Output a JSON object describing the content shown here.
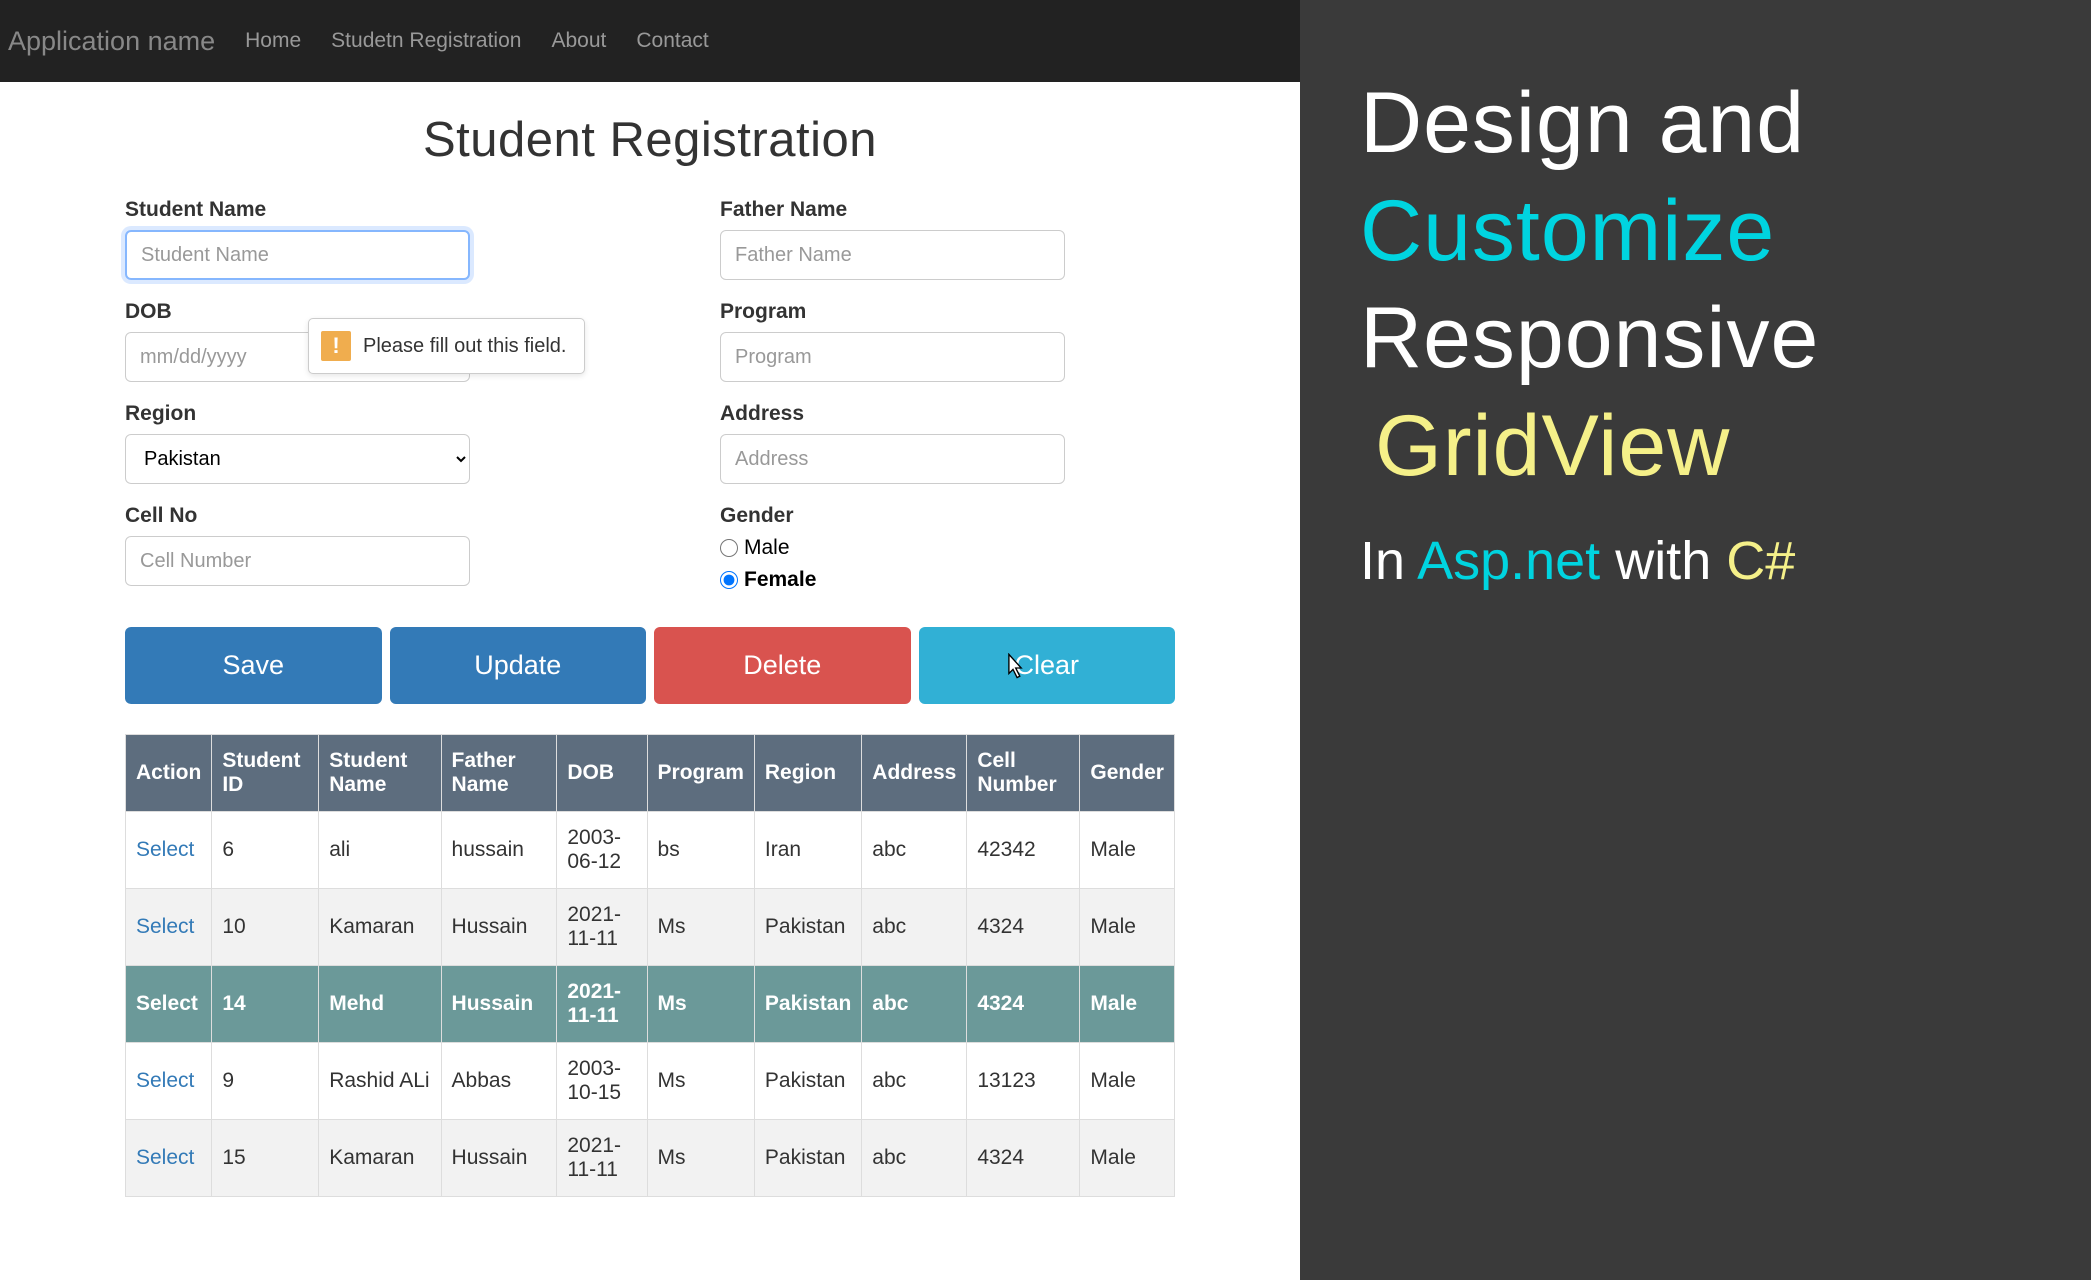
{
  "navbar": {
    "brand": "Application name",
    "links": [
      "Home",
      "Studetn Registration",
      "About",
      "Contact"
    ]
  },
  "page": {
    "title": "Student Registration"
  },
  "form": {
    "student_name": {
      "label": "Student Name",
      "placeholder": "Student Name",
      "value": ""
    },
    "father_name": {
      "label": "Father Name",
      "placeholder": "Father Name",
      "value": ""
    },
    "dob": {
      "label": "DOB",
      "placeholder": "mm/dd/yyyy",
      "value": ""
    },
    "program": {
      "label": "Program",
      "placeholder": "Program",
      "value": ""
    },
    "region": {
      "label": "Region",
      "selected": "Pakistan"
    },
    "address": {
      "label": "Address",
      "placeholder": "Address",
      "value": ""
    },
    "cell_no": {
      "label": "Cell No",
      "placeholder": "Cell Number",
      "value": ""
    },
    "gender": {
      "label": "Gender",
      "male": "Male",
      "female": "Female",
      "selected": "Female"
    },
    "tooltip": "Please fill out this field."
  },
  "buttons": {
    "save": "Save",
    "update": "Update",
    "delete": "Delete",
    "clear": "Clear"
  },
  "grid": {
    "headers": [
      "Action",
      "Student ID",
      "Student Name",
      "Father Name",
      "DOB",
      "Program",
      "Region",
      "Address",
      "Cell Number",
      "Gender"
    ],
    "select_label": "Select",
    "rows": [
      {
        "id": "6",
        "name": "ali",
        "father": "hussain",
        "dob": "2003-06-12",
        "program": "bs",
        "region": "Iran",
        "address": "abc",
        "cell": "42342",
        "gender": "Male",
        "selected": false,
        "striped": false
      },
      {
        "id": "10",
        "name": "Kamaran",
        "father": "Hussain",
        "dob": "2021-11-11",
        "program": "Ms",
        "region": "Pakistan",
        "address": "abc",
        "cell": "4324",
        "gender": "Male",
        "selected": false,
        "striped": true
      },
      {
        "id": "14",
        "name": "Mehd",
        "father": "Hussain",
        "dob": "2021-11-11",
        "program": "Ms",
        "region": "Pakistan",
        "address": "abc",
        "cell": "4324",
        "gender": "Male",
        "selected": true,
        "striped": false
      },
      {
        "id": "9",
        "name": "Rashid ALi",
        "father": "Abbas",
        "dob": "2003-10-15",
        "program": "Ms",
        "region": "Pakistan",
        "address": "abc",
        "cell": "13123",
        "gender": "Male",
        "selected": false,
        "striped": false
      },
      {
        "id": "15",
        "name": "Kamaran",
        "father": "Hussain",
        "dob": "2021-11-11",
        "program": "Ms",
        "region": "Pakistan",
        "address": "abc",
        "cell": "4324",
        "gender": "Male",
        "selected": false,
        "striped": true
      }
    ]
  },
  "sidebar": {
    "line1": "Design and",
    "line2": "Customize",
    "line3": "Responsive",
    "line4": "GridView",
    "sub_in": "In ",
    "sub_asp": "Asp.net",
    "sub_with": " with ",
    "sub_cs": "C#"
  },
  "colors": {
    "navbar_bg": "#222222",
    "btn_primary": "#337ab7",
    "btn_danger": "#d9534f",
    "btn_info": "#31b0d5",
    "th_bg": "#5d6d7e",
    "selected_row_bg": "#6b9999",
    "sidebar_bg": "#3a3a3a",
    "cyan": "#00d4e0",
    "yellow": "#f5f089"
  }
}
